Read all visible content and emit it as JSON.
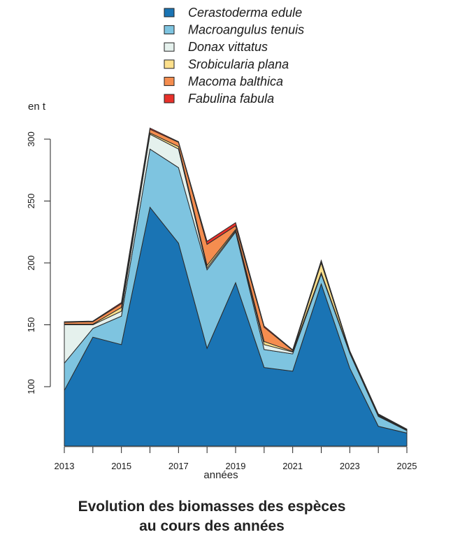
{
  "chart_data": {
    "type": "area",
    "stacked": true,
    "title_lines": [
      "Evolution des biomasses des espèces",
      "au cours des années"
    ],
    "xlabel": "années",
    "ylabel": "en t",
    "x": [
      2013,
      2014,
      2015,
      2016,
      2017,
      2018,
      2019,
      2020,
      2021,
      2022,
      2023,
      2024,
      2025
    ],
    "x_tick_labels": [
      "2013",
      "2015",
      "2017",
      "2019",
      "2021",
      "2023",
      "2025"
    ],
    "y_ticks": [
      100,
      150,
      200,
      250,
      300
    ],
    "y_tick_labels": [
      "100",
      "150",
      "200",
      "250",
      "300"
    ],
    "xlim": [
      2013,
      2025
    ],
    "ylim": [
      52,
      310
    ],
    "grid": false,
    "legend_position": "top",
    "series": [
      {
        "name": "Cerastoderma edule",
        "color": "#1a74b4",
        "values": [
          97,
          140,
          134,
          245,
          216,
          131,
          184,
          115.5,
          112.5,
          183,
          115,
          68,
          62.5
        ]
      },
      {
        "name": "Macroangulus tenuis",
        "color": "#7ec4e0",
        "values": [
          22,
          7,
          23,
          47,
          61,
          63.5,
          41,
          14.5,
          14,
          8,
          12,
          8,
          2
        ]
      },
      {
        "name": "Donax vittatus",
        "color": "#e5f1ed",
        "values": [
          31,
          3,
          4,
          12,
          15,
          1.5,
          1,
          4,
          1.5,
          1,
          0.7,
          0.5,
          0.3
        ]
      },
      {
        "name": "Srobicularia plana",
        "color": "#fde08c",
        "values": [
          0.5,
          0.5,
          3,
          1,
          2,
          2,
          1,
          2.5,
          0.5,
          8,
          0.5,
          0.5,
          0.3
        ]
      },
      {
        "name": "Macoma balthica",
        "color": "#f58d4f",
        "values": [
          1.5,
          2,
          3,
          3,
          3.5,
          17,
          3,
          11.5,
          0.8,
          1,
          0.5,
          0.5,
          0.3
        ]
      },
      {
        "name": "Fabulina fabula",
        "color": "#e8312a",
        "values": [
          0.5,
          0.5,
          1,
          1,
          0.5,
          2.5,
          2.5,
          1,
          0.5,
          1,
          0.3,
          0.5,
          0.3
        ]
      }
    ]
  }
}
